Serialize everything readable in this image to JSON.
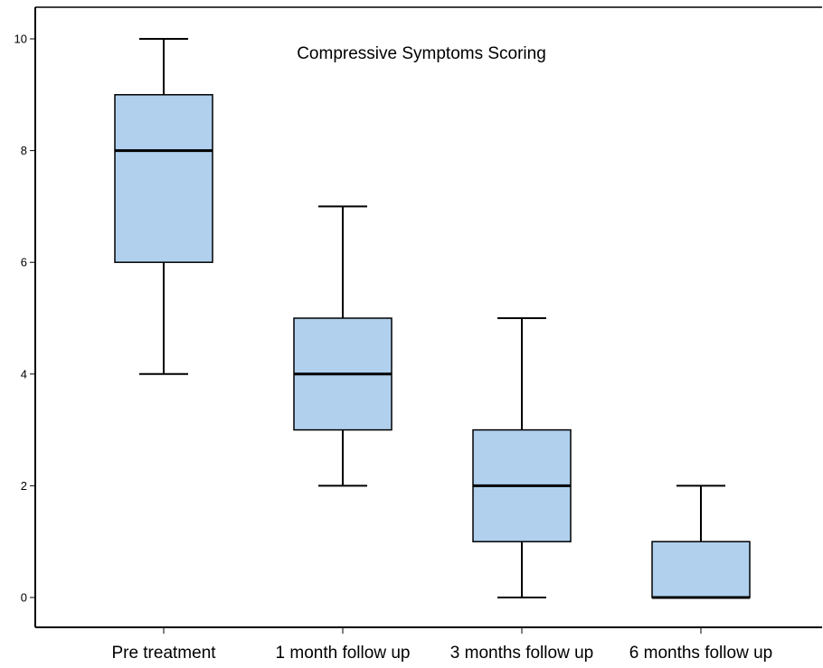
{
  "chart_data": {
    "type": "box",
    "title": "Compressive Symptoms Scoring",
    "xlabel": "",
    "ylabel": "",
    "ylim": [
      0,
      10
    ],
    "y_ticks": [
      0,
      2,
      4,
      6,
      8,
      10
    ],
    "grid": false,
    "legend": "none",
    "categories": [
      "Pre treatment",
      "1 month follow up",
      "3 months follow up",
      "6 months follow up"
    ],
    "boxes": [
      {
        "category": "Pre treatment",
        "min": 4,
        "q1": 6,
        "median": 8,
        "q3": 9,
        "max": 10
      },
      {
        "category": "1 month follow up",
        "min": 2,
        "q1": 3,
        "median": 4,
        "q3": 5,
        "max": 7
      },
      {
        "category": "3 months follow up",
        "min": 0,
        "q1": 1,
        "median": 2,
        "q3": 3,
        "max": 5
      },
      {
        "category": "6 months follow up",
        "min": 0,
        "q1": 0,
        "median": 0,
        "q3": 1,
        "max": 2
      }
    ],
    "colors": {
      "box_fill": "#b0d0ee",
      "stroke": "#000000"
    }
  }
}
